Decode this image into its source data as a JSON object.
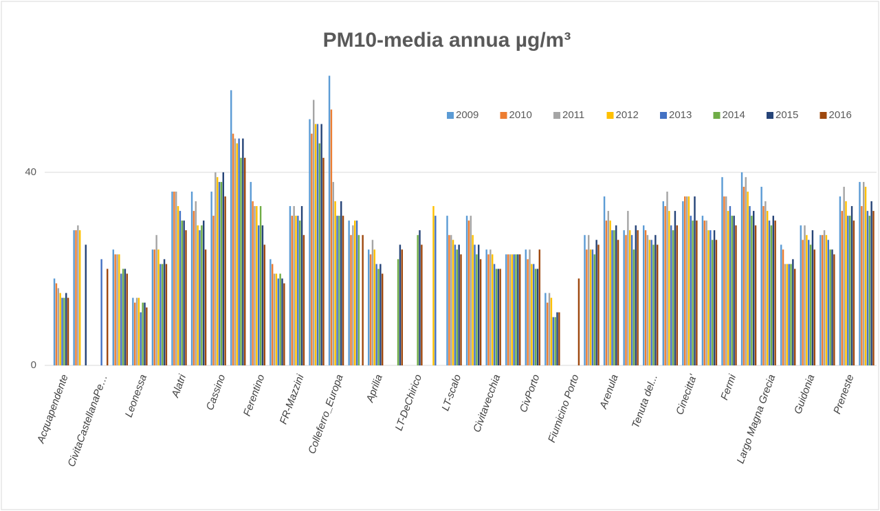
{
  "chart_data": {
    "type": "bar",
    "title": "PM10-media annua  µg/m³",
    "categories": [
      "Acquapendente",
      null,
      "CivitaCastellanaPe…",
      null,
      "Leonessa",
      null,
      "Alatri",
      null,
      "Cassino",
      null,
      "Ferentino",
      null,
      "FR-Mazzini",
      null,
      "Colleferro_Europa",
      null,
      "Aprilia",
      null,
      "LT-DeChirico",
      null,
      "LT-scalo",
      null,
      "Civitavecchia",
      null,
      "CivPorto",
      null,
      "Fiumicino Porto",
      null,
      "Arenula",
      null,
      "Tenuta del...",
      null,
      "Cinecitta'",
      null,
      "Fermi",
      null,
      "Largo Magna Grecia",
      null,
      "Guidonia",
      null,
      "Preneste",
      null
    ],
    "series": [
      {
        "name": "2009",
        "color": "#5b9bd5",
        "values": [
          18,
          28,
          null,
          24,
          14,
          24,
          36,
          36,
          36,
          57,
          38,
          22,
          33,
          51,
          60,
          30,
          24,
          null,
          null,
          null,
          31,
          31,
          24,
          23,
          24,
          15,
          null,
          27,
          35,
          28,
          29,
          34,
          34,
          31,
          39,
          40,
          37,
          25,
          29,
          27,
          35,
          38
        ]
      },
      {
        "name": "2010",
        "color": "#ed7d31",
        "values": [
          17,
          28,
          null,
          23,
          13,
          24,
          36,
          32,
          31,
          48,
          34,
          21,
          31,
          48,
          53,
          27,
          23,
          null,
          null,
          null,
          27,
          30,
          23,
          23,
          22,
          13,
          null,
          24,
          30,
          27,
          28,
          33,
          35,
          30,
          35,
          37,
          33,
          24,
          26,
          27,
          32,
          33
        ]
      },
      {
        "name": "2011",
        "color": "#a5a5a5",
        "values": [
          16,
          29,
          null,
          23,
          14,
          27,
          36,
          34,
          40,
          47,
          33,
          19,
          33,
          55,
          38,
          29,
          26,
          null,
          null,
          null,
          27,
          31,
          24,
          23,
          24,
          15,
          null,
          27,
          32,
          32,
          27,
          36,
          35,
          30,
          35,
          39,
          34,
          21,
          29,
          28,
          37,
          38
        ]
      },
      {
        "name": "2012",
        "color": "#ffc000",
        "values": [
          15,
          28,
          null,
          23,
          14,
          24,
          33,
          29,
          39,
          46,
          33,
          19,
          31,
          50,
          34,
          30,
          24,
          null,
          null,
          33,
          26,
          27,
          23,
          23,
          21,
          14,
          null,
          24,
          30,
          28,
          26,
          32,
          35,
          28,
          32,
          36,
          32,
          21,
          27,
          27,
          34,
          37
        ]
      },
      {
        "name": "2013",
        "color": "#4472c4",
        "values": [
          14,
          null,
          22,
          19,
          11,
          21,
          32,
          28,
          38,
          47,
          29,
          18,
          31,
          50,
          31,
          30,
          21,
          null,
          null,
          31,
          25,
          25,
          21,
          23,
          21,
          10,
          null,
          24,
          28,
          27,
          26,
          29,
          31,
          28,
          33,
          33,
          30,
          21,
          26,
          26,
          31,
          32
        ]
      },
      {
        "name": "2014",
        "color": "#70ad47",
        "values": [
          14,
          null,
          null,
          20,
          13,
          21,
          30,
          29,
          38,
          43,
          33,
          19,
          30,
          46,
          31,
          27,
          20,
          22,
          27,
          null,
          24,
          23,
          20,
          23,
          20,
          10,
          null,
          23,
          28,
          24,
          25,
          28,
          30,
          26,
          31,
          31,
          29,
          21,
          25,
          24,
          31,
          31
        ]
      },
      {
        "name": "2015",
        "color": "#264478",
        "values": [
          15,
          25,
          null,
          20,
          13,
          22,
          30,
          30,
          40,
          47,
          29,
          18,
          33,
          50,
          34,
          null,
          21,
          25,
          28,
          null,
          25,
          25,
          20,
          23,
          20,
          11,
          null,
          26,
          29,
          29,
          27,
          32,
          35,
          28,
          31,
          32,
          31,
          22,
          28,
          24,
          33,
          34
        ]
      },
      {
        "name": "2016",
        "color": "#9e480e",
        "values": [
          14,
          null,
          20,
          19,
          12,
          21,
          28,
          24,
          35,
          43,
          25,
          17,
          27,
          43,
          31,
          27,
          19,
          24,
          25,
          null,
          23,
          22,
          20,
          23,
          24,
          11,
          18,
          25,
          26,
          28,
          25,
          29,
          30,
          26,
          29,
          29,
          30,
          20,
          24,
          23,
          30,
          32
        ]
      }
    ],
    "ylim": [
      0,
      70
    ],
    "yticks": [
      0,
      40
    ],
    "grid": true,
    "legend": "top-right"
  }
}
